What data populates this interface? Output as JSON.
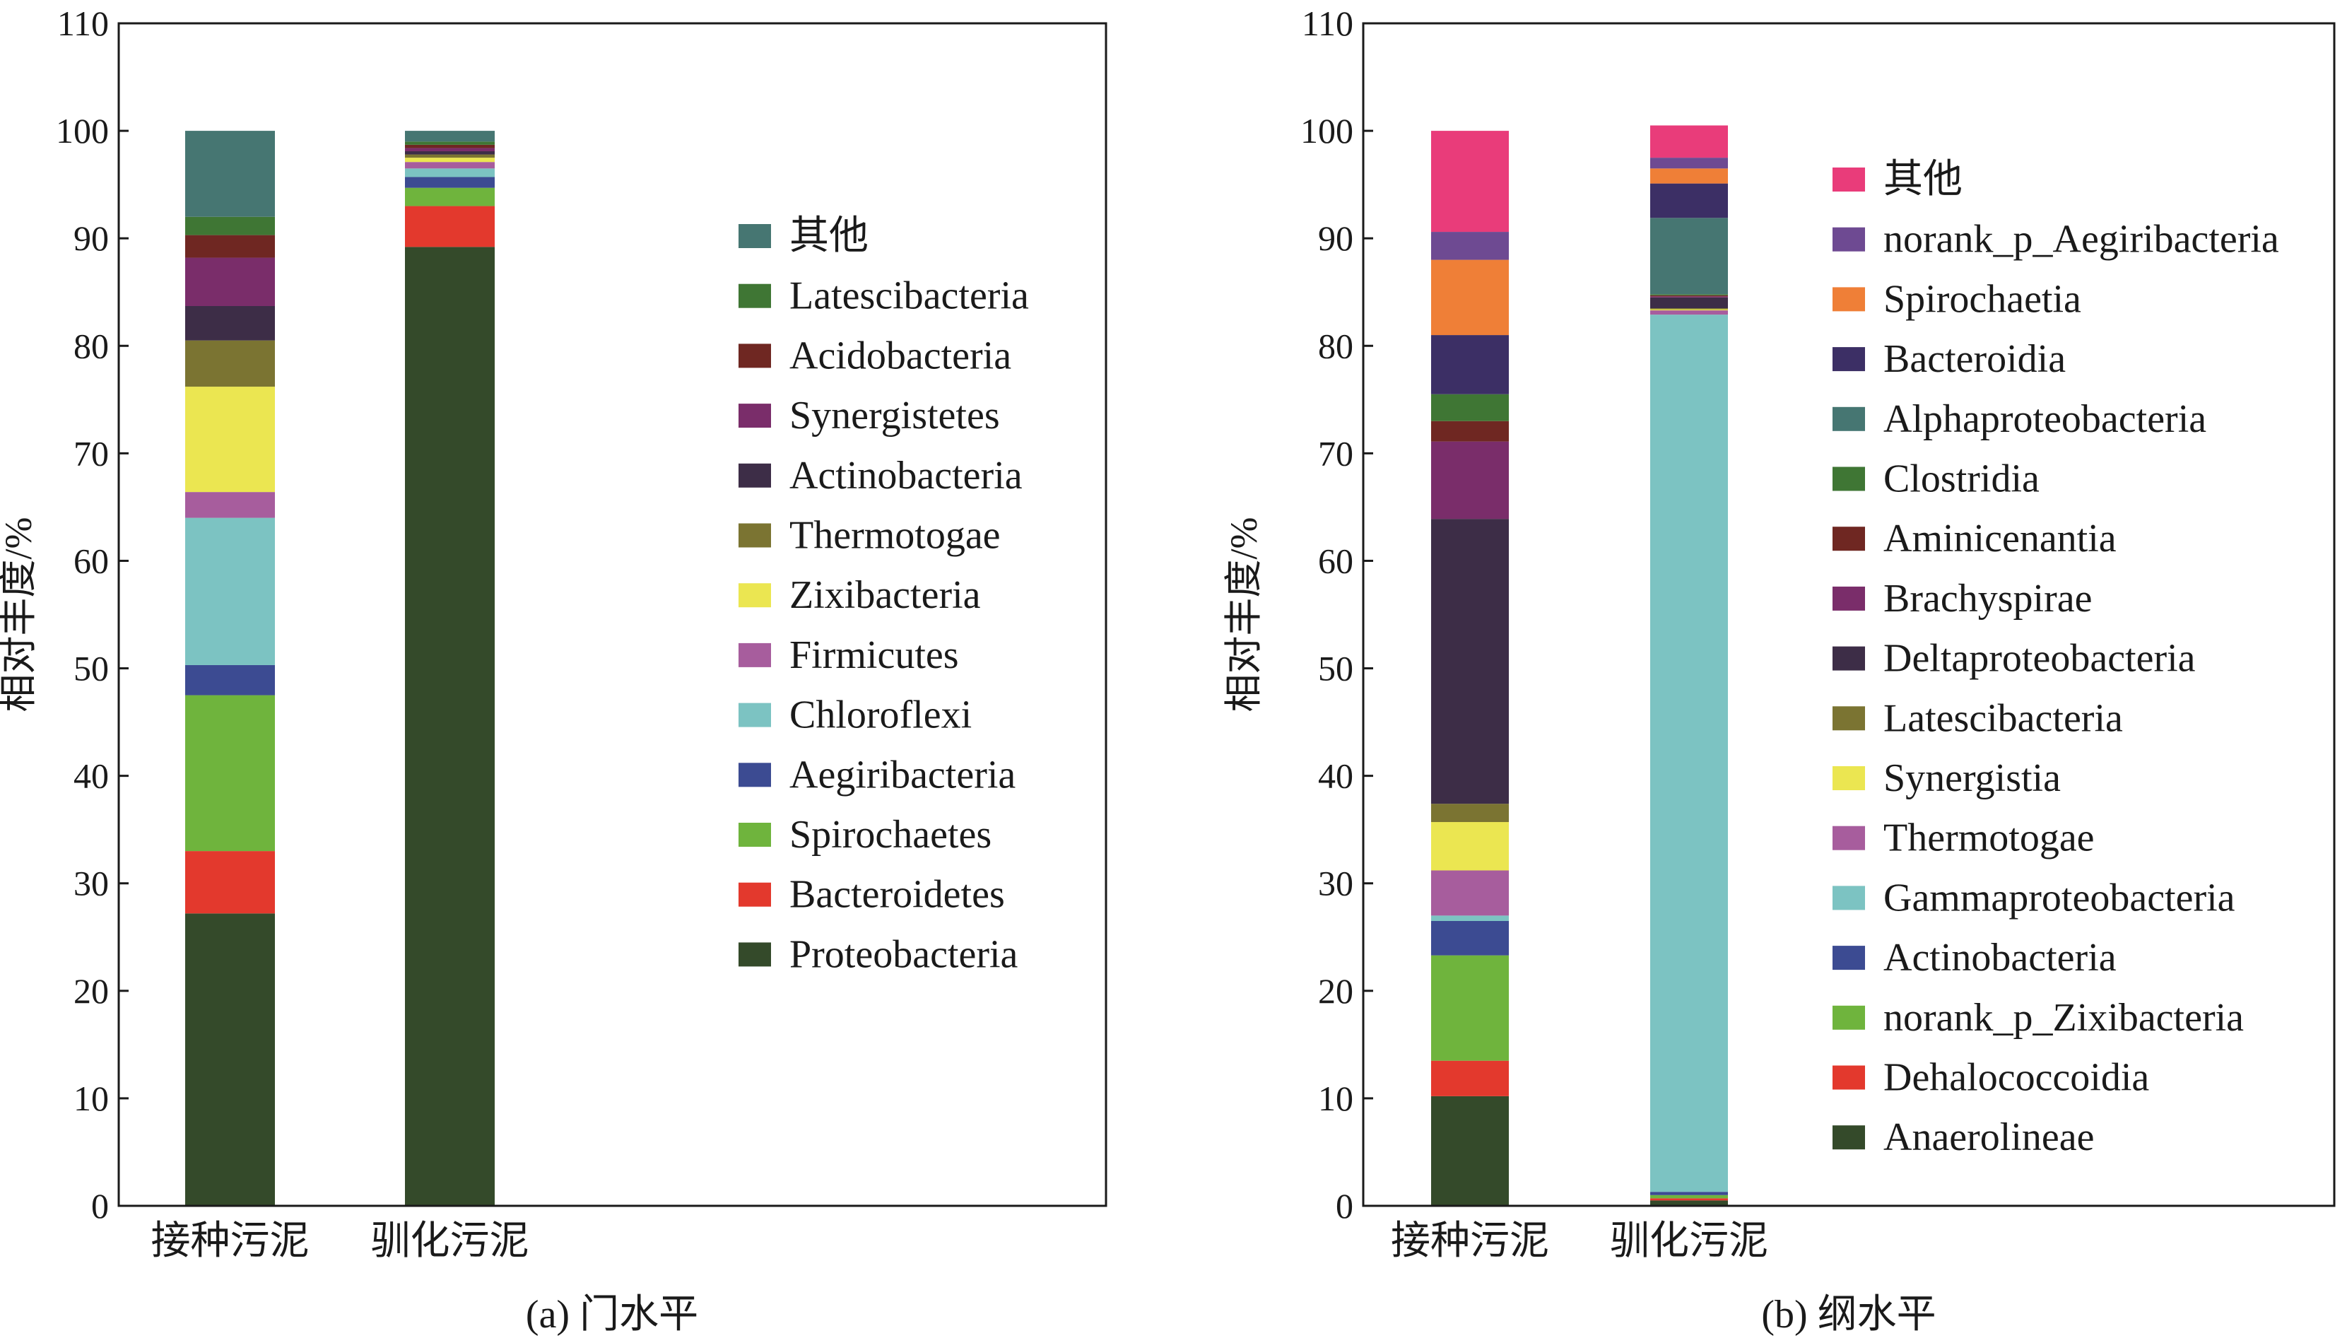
{
  "chart_data": [
    {
      "type": "bar",
      "stacked": true,
      "caption": "(a) 门水平",
      "ylabel": "相对丰度/%",
      "ylim": [
        0,
        110
      ],
      "yticks": [
        0,
        10,
        20,
        30,
        40,
        50,
        60,
        70,
        80,
        90,
        100,
        110
      ],
      "grid": false,
      "legend_position": "right",
      "categories": [
        "接种污泥",
        "驯化污泥"
      ],
      "series": [
        {
          "name": "Proteobacteria",
          "color": "#344a2a",
          "values": [
            27.2,
            89.2
          ]
        },
        {
          "name": "Bacteroidetes",
          "color": "#e3392d",
          "values": [
            5.8,
            3.8
          ]
        },
        {
          "name": "Spirochaetes",
          "color": "#6fb43d",
          "values": [
            14.5,
            1.7
          ]
        },
        {
          "name": "Aegiribacteria",
          "color": "#3c4b92",
          "values": [
            2.8,
            1.0
          ]
        },
        {
          "name": "Chloroflexi",
          "color": "#7cc3c2",
          "values": [
            13.7,
            0.8
          ]
        },
        {
          "name": "Firmicutes",
          "color": "#a75d9d",
          "values": [
            2.4,
            0.6
          ]
        },
        {
          "name": "Zixibacteria",
          "color": "#ebe651",
          "values": [
            9.8,
            0.4
          ]
        },
        {
          "name": "Thermotogae",
          "color": "#7b7432",
          "values": [
            4.3,
            0.3
          ]
        },
        {
          "name": "Actinobacteria",
          "color": "#3d2d47",
          "values": [
            3.2,
            0.3
          ]
        },
        {
          "name": "Synergistetes",
          "color": "#7a2d6a",
          "values": [
            4.5,
            0.3
          ]
        },
        {
          "name": "Acidobacteria",
          "color": "#6f2722",
          "values": [
            2.1,
            0.3
          ]
        },
        {
          "name": "Latescibacteria",
          "color": "#3f7634",
          "values": [
            1.7,
            0.3
          ]
        },
        {
          "name": "其他",
          "color": "#467672",
          "values": [
            8.0,
            1.0
          ]
        }
      ]
    },
    {
      "type": "bar",
      "stacked": true,
      "caption": "(b) 纲水平",
      "ylabel": "相对丰度/%",
      "ylim": [
        0,
        110
      ],
      "yticks": [
        0,
        10,
        20,
        30,
        40,
        50,
        60,
        70,
        80,
        90,
        100,
        110
      ],
      "grid": false,
      "legend_position": "right",
      "categories": [
        "接种污泥",
        "驯化污泥"
      ],
      "series": [
        {
          "name": "Anaerolineae",
          "color": "#344a2a",
          "values": [
            10.2,
            0.5
          ]
        },
        {
          "name": "Dehalococcoidia",
          "color": "#e3392d",
          "values": [
            3.3,
            0.2
          ]
        },
        {
          "name": "norank_p_Zixibacteria",
          "color": "#6fb43d",
          "values": [
            9.8,
            0.3
          ]
        },
        {
          "name": "Actinobacteria",
          "color": "#3c4b92",
          "values": [
            3.2,
            0.3
          ]
        },
        {
          "name": "Gammaproteobacteria",
          "color": "#7cc3c2",
          "values": [
            0.5,
            81.6
          ]
        },
        {
          "name": "Thermotogae",
          "color": "#a75d9d",
          "values": [
            4.2,
            0.4
          ]
        },
        {
          "name": "Synergistia",
          "color": "#ebe651",
          "values": [
            4.5,
            0.1
          ]
        },
        {
          "name": "Latescibacteria",
          "color": "#7b7432",
          "values": [
            1.7,
            0.1
          ]
        },
        {
          "name": "Deltaproteobacteria",
          "color": "#3d2d47",
          "values": [
            26.5,
            1.0
          ]
        },
        {
          "name": "Brachyspirae",
          "color": "#7a2d6a",
          "values": [
            7.2,
            0.1
          ]
        },
        {
          "name": "Aminicenantia",
          "color": "#6f2722",
          "values": [
            1.9,
            0.1
          ]
        },
        {
          "name": "Clostridia",
          "color": "#3f7634",
          "values": [
            2.5,
            0.1
          ]
        },
        {
          "name": "Alphaproteobacteria",
          "color": "#467672",
          "values": [
            0.0,
            7.1
          ]
        },
        {
          "name": "Bacteroidia",
          "color": "#3c2f65",
          "values": [
            5.5,
            3.2
          ]
        },
        {
          "name": "Spirochaetia",
          "color": "#ef7f37",
          "values": [
            7.0,
            1.4
          ]
        },
        {
          "name": "norank_p_Aegiribacteria",
          "color": "#6e4a92",
          "values": [
            2.6,
            1.0
          ]
        },
        {
          "name": "其他",
          "color": "#e93c7a",
          "values": [
            9.4,
            3.0
          ]
        }
      ]
    }
  ]
}
